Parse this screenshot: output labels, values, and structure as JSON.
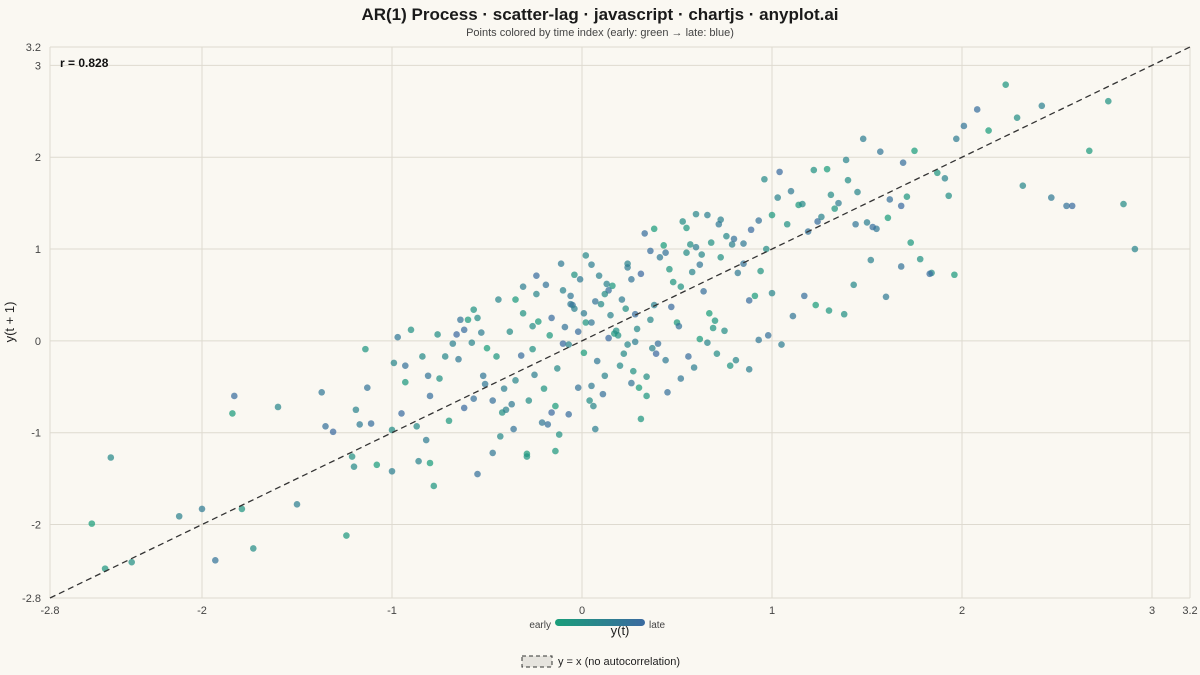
{
  "chart_data": {
    "type": "scatter",
    "title": "AR(1) Process · scatter-lag · javascript · chartjs · anyplot.ai",
    "subtitle": "Points colored by time index (early: green → late: blue)",
    "xlabel": "y(t)",
    "ylabel": "y(t + 1)",
    "xlim": [
      -2.8,
      3.2
    ],
    "ylim": [
      -2.8,
      3.2
    ],
    "x_ticks": [
      "-2.8",
      "-2",
      "-1",
      "0",
      "1",
      "2",
      "3",
      "3.2"
    ],
    "x_tick_values": [
      -2.8,
      -2,
      -1,
      0,
      1,
      2,
      3,
      3.2
    ],
    "y_ticks": [
      "-2.8",
      "-2",
      "-1",
      "0",
      "1",
      "2",
      "3",
      "3.2"
    ],
    "y_tick_values": [
      -2.8,
      -2,
      -1,
      0,
      1,
      2,
      3,
      3.2
    ],
    "grid": true,
    "annotation": "r = 0.828",
    "reference_line": {
      "label": "y = x  (no autocorrelation)",
      "style": "dashed",
      "color": "#333333"
    },
    "colorbar": {
      "early_label": "early",
      "late_label": "late",
      "early_color": "#1a9e7a",
      "late_color": "#3b6aa0"
    },
    "legend_position": "bottom-center",
    "points": [
      [
        -2.58,
        -1.99
      ],
      [
        -2.51,
        -2.48
      ],
      [
        -2.37,
        -2.41
      ],
      [
        -2.48,
        -1.27
      ],
      [
        -2.12,
        -1.91
      ],
      [
        -2.0,
        -1.83
      ],
      [
        -1.93,
        -2.39
      ],
      [
        -1.83,
        -0.6
      ],
      [
        -1.84,
        -0.79
      ],
      [
        -1.79,
        -1.83
      ],
      [
        -1.73,
        -2.26
      ],
      [
        -1.6,
        -0.72
      ],
      [
        -1.5,
        -1.78
      ],
      [
        -1.37,
        -0.56
      ],
      [
        -1.35,
        -0.93
      ],
      [
        -1.31,
        -0.99
      ],
      [
        -1.24,
        -2.12
      ],
      [
        -1.21,
        -1.26
      ],
      [
        -1.2,
        -1.37
      ],
      [
        -1.19,
        -0.75
      ],
      [
        -1.17,
        -0.91
      ],
      [
        -1.13,
        -0.51
      ],
      [
        -1.11,
        -0.9
      ],
      [
        -1.08,
        -1.35
      ],
      [
        -1.14,
        -0.09
      ],
      [
        -1.0,
        -0.97
      ],
      [
        -0.99,
        -0.24
      ],
      [
        -1.0,
        -1.42
      ],
      [
        -0.97,
        0.04
      ],
      [
        -0.93,
        -0.27
      ],
      [
        -0.95,
        -0.79
      ],
      [
        -0.93,
        -0.45
      ],
      [
        -0.9,
        0.12
      ],
      [
        -0.87,
        -0.93
      ],
      [
        -0.86,
        -1.31
      ],
      [
        -0.82,
        -1.08
      ],
      [
        -0.81,
        -0.38
      ],
      [
        -0.8,
        -0.6
      ],
      [
        -0.8,
        -1.33
      ],
      [
        -0.78,
        -1.58
      ],
      [
        -0.76,
        0.07
      ],
      [
        -0.72,
        -0.17
      ],
      [
        -0.68,
        -0.03
      ],
      [
        -0.65,
        -0.2
      ],
      [
        -0.64,
        0.23
      ],
      [
        -0.62,
        0.12
      ],
      [
        -0.6,
        0.23
      ],
      [
        -0.57,
        0.34
      ],
      [
        -0.55,
        0.25
      ],
      [
        -0.58,
        -0.02
      ],
      [
        -0.53,
        0.09
      ],
      [
        -0.52,
        -0.38
      ],
      [
        -0.47,
        -0.65
      ],
      [
        -0.5,
        -0.08
      ],
      [
        -0.45,
        -0.17
      ],
      [
        -0.42,
        -0.78
      ],
      [
        -0.43,
        -1.04
      ],
      [
        -0.4,
        -0.75
      ],
      [
        -0.37,
        -0.69
      ],
      [
        -0.36,
        -0.96
      ],
      [
        -0.32,
        -0.16
      ],
      [
        -0.29,
        -1.23
      ],
      [
        -0.29,
        -1.26
      ],
      [
        -0.26,
        0.16
      ],
      [
        -0.24,
        0.51
      ],
      [
        -0.25,
        -0.37
      ],
      [
        -0.21,
        -0.89
      ],
      [
        -0.18,
        -0.91
      ],
      [
        -0.16,
        -0.78
      ],
      [
        -0.14,
        -1.2
      ],
      [
        -0.12,
        -1.02
      ],
      [
        -0.13,
        -0.3
      ],
      [
        -0.1,
        0.55
      ],
      [
        -0.06,
        0.4
      ],
      [
        -0.05,
        0.39
      ],
      [
        -0.02,
        0.1
      ],
      [
        0.01,
        -0.13
      ],
      [
        0.02,
        0.2
      ],
      [
        0.04,
        -0.65
      ],
      [
        0.06,
        -0.71
      ],
      [
        0.07,
        -0.96
      ],
      [
        0.08,
        -0.22
      ],
      [
        0.11,
        -0.58
      ],
      [
        0.14,
        0.03
      ],
      [
        0.16,
        0.6
      ],
      [
        0.19,
        0.06
      ],
      [
        0.22,
        -0.14
      ],
      [
        0.24,
        0.84
      ],
      [
        0.24,
        0.8
      ],
      [
        0.26,
        -0.46
      ],
      [
        0.28,
        0.29
      ],
      [
        0.3,
        -0.51
      ],
      [
        0.31,
        -0.85
      ],
      [
        0.34,
        -0.39
      ],
      [
        0.36,
        0.23
      ],
      [
        0.38,
        0.39
      ],
      [
        0.41,
        0.91
      ],
      [
        0.44,
        0.96
      ],
      [
        0.47,
        0.37
      ],
      [
        0.5,
        0.2
      ],
      [
        0.52,
        0.59
      ],
      [
        0.55,
        0.96
      ],
      [
        0.58,
        0.75
      ],
      [
        0.6,
        1.02
      ],
      [
        0.62,
        0.83
      ],
      [
        0.64,
        0.54
      ],
      [
        0.67,
        0.3
      ],
      [
        0.7,
        0.22
      ],
      [
        0.73,
        0.91
      ],
      [
        0.76,
        1.14
      ],
      [
        0.79,
        1.05
      ],
      [
        0.82,
        0.74
      ],
      [
        0.85,
        0.84
      ],
      [
        0.88,
        0.44
      ],
      [
        0.91,
        0.49
      ],
      [
        0.94,
        0.76
      ],
      [
        0.97,
        1.0
      ],
      [
        1.0,
        0.52
      ],
      [
        0.05,
        0.83
      ],
      [
        -0.06,
        0.49
      ],
      [
        0.14,
        0.55
      ],
      [
        0.31,
        0.73
      ],
      [
        0.55,
        1.23
      ],
      [
        0.68,
        1.07
      ],
      [
        0.96,
        1.76
      ],
      [
        1.03,
        1.56
      ],
      [
        1.1,
        1.63
      ],
      [
        1.19,
        1.19
      ],
      [
        1.24,
        1.3
      ],
      [
        1.29,
        1.87
      ],
      [
        1.33,
        1.44
      ],
      [
        1.4,
        1.75
      ],
      [
        1.45,
        1.62
      ],
      [
        1.5,
        1.29
      ],
      [
        1.55,
        1.22
      ],
      [
        1.62,
        1.54
      ],
      [
        1.68,
        1.47
      ],
      [
        1.73,
        1.07
      ],
      [
        1.78,
        0.89
      ],
      [
        1.84,
        0.74
      ],
      [
        1.91,
        1.77
      ],
      [
        1.97,
        2.2
      ],
      [
        2.01,
        2.34
      ],
      [
        2.08,
        2.52
      ],
      [
        2.14,
        2.29
      ],
      [
        2.23,
        2.79
      ],
      [
        2.29,
        2.43
      ],
      [
        2.32,
        1.69
      ],
      [
        2.42,
        2.56
      ],
      [
        2.47,
        1.56
      ],
      [
        2.55,
        1.47
      ],
      [
        2.58,
        1.47
      ],
      [
        2.67,
        2.07
      ],
      [
        2.77,
        2.61
      ],
      [
        2.85,
        1.49
      ],
      [
        2.91,
        1.0
      ],
      [
        1.05,
        -0.04
      ],
      [
        1.11,
        0.27
      ],
      [
        1.17,
        0.49
      ],
      [
        1.23,
        0.39
      ],
      [
        1.3,
        0.33
      ],
      [
        1.38,
        0.29
      ],
      [
        1.43,
        0.61
      ],
      [
        1.52,
        0.88
      ],
      [
        1.6,
        0.48
      ],
      [
        1.68,
        0.81
      ],
      [
        1.83,
        0.73
      ],
      [
        1.96,
        0.72
      ],
      [
        0.78,
        -0.27
      ],
      [
        0.71,
        -0.14
      ],
      [
        0.66,
        -0.02
      ],
      [
        0.59,
        -0.29
      ],
      [
        0.52,
        -0.41
      ],
      [
        0.45,
        -0.56
      ],
      [
        0.39,
        -0.14
      ],
      [
        0.34,
        -0.6
      ],
      [
        0.27,
        -0.33
      ],
      [
        0.2,
        -0.27
      ],
      [
        0.12,
        -0.38
      ],
      [
        0.05,
        -0.49
      ],
      [
        -0.02,
        -0.51
      ],
      [
        -0.07,
        -0.8
      ],
      [
        -0.14,
        -0.71
      ],
      [
        -0.2,
        -0.52
      ],
      [
        -0.28,
        -0.65
      ],
      [
        -0.35,
        -0.43
      ],
      [
        -0.41,
        -0.52
      ],
      [
        -0.47,
        -1.22
      ],
      [
        -0.55,
        -1.45
      ],
      [
        -0.62,
        -0.73
      ],
      [
        -0.7,
        -0.87
      ],
      [
        -0.75,
        -0.41
      ],
      [
        -0.84,
        -0.17
      ],
      [
        0.15,
        0.28
      ],
      [
        0.21,
        0.45
      ],
      [
        0.26,
        0.67
      ],
      [
        0.36,
        0.98
      ],
      [
        0.43,
        1.04
      ],
      [
        0.48,
        0.64
      ],
      [
        0.57,
        1.05
      ],
      [
        0.63,
        0.94
      ],
      [
        0.73,
        1.32
      ],
      [
        0.85,
        1.06
      ],
      [
        0.93,
        1.31
      ],
      [
        1.04,
        1.84
      ],
      [
        1.14,
        1.48
      ],
      [
        1.22,
        1.86
      ],
      [
        1.31,
        1.59
      ],
      [
        1.39,
        1.97
      ],
      [
        1.48,
        2.2
      ],
      [
        1.57,
        2.06
      ],
      [
        1.69,
        1.94
      ],
      [
        1.75,
        2.07
      ],
      [
        1.87,
        1.83
      ],
      [
        1.93,
        1.58
      ],
      [
        0.02,
        0.93
      ],
      [
        0.09,
        0.71
      ],
      [
        -0.01,
        0.67
      ],
      [
        -0.09,
        0.15
      ],
      [
        -0.16,
        0.25
      ],
      [
        -0.23,
        0.21
      ],
      [
        -0.31,
        0.3
      ],
      [
        -0.38,
        0.1
      ],
      [
        -0.44,
        0.45
      ],
      [
        -0.31,
        0.59
      ],
      [
        -0.51,
        -0.47
      ],
      [
        -0.57,
        -0.63
      ],
      [
        -0.66,
        0.07
      ],
      [
        0.17,
        0.08
      ],
      [
        0.23,
        0.35
      ],
      [
        0.29,
        0.13
      ],
      [
        0.37,
        -0.08
      ],
      [
        0.44,
        -0.21
      ],
      [
        0.51,
        0.16
      ],
      [
        0.56,
        -0.17
      ],
      [
        0.62,
        0.02
      ],
      [
        0.69,
        0.14
      ],
      [
        0.75,
        0.11
      ],
      [
        0.81,
        -0.21
      ],
      [
        0.88,
        -0.31
      ],
      [
        0.93,
        0.01
      ],
      [
        0.98,
        0.06
      ],
      [
        -0.1,
        -0.03
      ],
      [
        -0.17,
        0.06
      ],
      [
        -0.26,
        -0.09
      ],
      [
        0.1,
        0.4
      ],
      [
        0.13,
        0.62
      ],
      [
        0.01,
        0.3
      ],
      [
        0.07,
        0.43
      ],
      [
        0.33,
        1.17
      ],
      [
        0.38,
        1.22
      ],
      [
        0.46,
        0.78
      ],
      [
        0.53,
        1.3
      ],
      [
        0.6,
        1.38
      ],
      [
        0.66,
        1.37
      ],
      [
        0.72,
        1.27
      ],
      [
        0.8,
        1.11
      ],
      [
        0.89,
        1.21
      ],
      [
        1.0,
        1.37
      ],
      [
        1.08,
        1.27
      ],
      [
        1.16,
        1.49
      ],
      [
        1.26,
        1.35
      ],
      [
        1.35,
        1.5
      ],
      [
        1.44,
        1.27
      ],
      [
        1.53,
        1.24
      ],
      [
        1.61,
        1.34
      ],
      [
        1.71,
        1.57
      ],
      [
        0.18,
        0.11
      ],
      [
        0.24,
        -0.04
      ],
      [
        -0.04,
        0.35
      ],
      [
        -0.11,
        0.84
      ],
      [
        -0.19,
        0.61
      ],
      [
        -0.24,
        0.71
      ],
      [
        -0.35,
        0.45
      ],
      [
        -0.04,
        0.72
      ],
      [
        0.12,
        0.51
      ],
      [
        -0.07,
        -0.04
      ],
      [
        0.28,
        -0.01
      ],
      [
        0.05,
        0.2
      ],
      [
        0.4,
        -0.03
      ]
    ]
  }
}
